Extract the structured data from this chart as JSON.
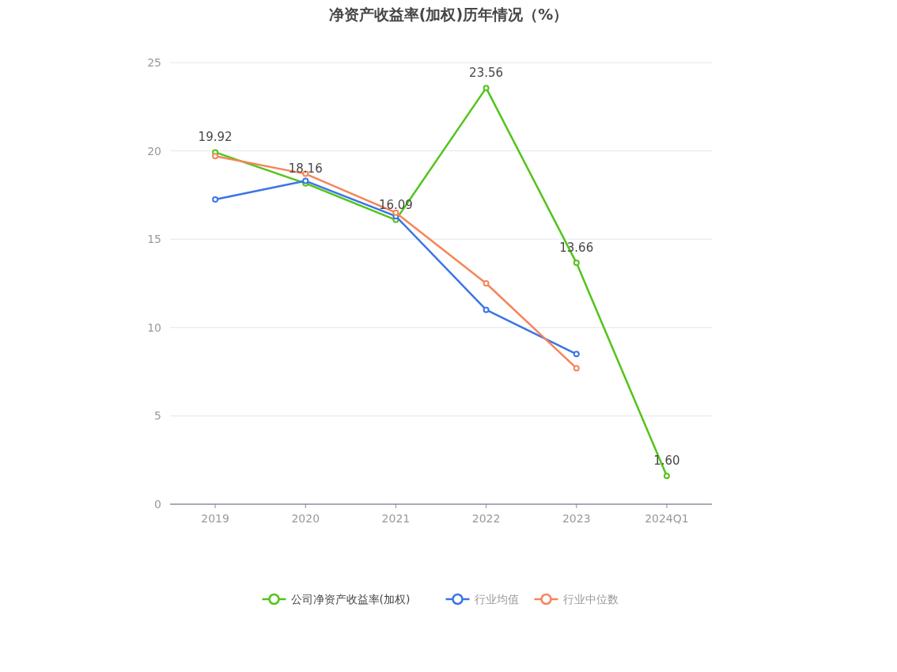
{
  "chart_data": {
    "type": "line",
    "title": "净资产收益率(加权)历年情况（%）",
    "categories": [
      "2019",
      "2020",
      "2021",
      "2022",
      "2023",
      "2024Q1"
    ],
    "series": [
      {
        "name": "公司净资产收益率(加权)",
        "color": "#52c41a",
        "values": [
          19.92,
          18.16,
          16.09,
          23.56,
          13.66,
          1.6
        ],
        "value_labels": [
          "19.92",
          "18.16",
          "16.09",
          "23.56",
          "13.66",
          "1.60"
        ]
      },
      {
        "name": "行业均值",
        "color": "#3a75e6",
        "values": [
          17.25,
          18.3,
          16.3,
          11.0,
          8.5,
          null
        ]
      },
      {
        "name": "行业中位数",
        "color": "#f5855a",
        "values": [
          19.7,
          18.7,
          16.5,
          12.5,
          7.7,
          null
        ]
      }
    ],
    "ylim": [
      0,
      25
    ],
    "yticks": [
      0,
      5,
      10,
      15,
      20,
      25
    ],
    "grid": "y",
    "legend": "bottom",
    "marker": "circle"
  }
}
